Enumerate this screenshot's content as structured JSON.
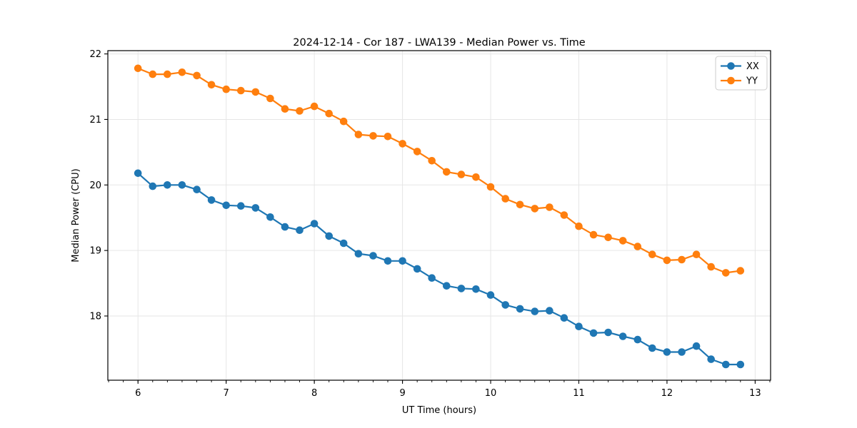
{
  "figure": {
    "background": "#ffffff",
    "spine_color": "#000000",
    "grid_color": "#e6e6e6",
    "tick_label_color": "#000000"
  },
  "chart_data": {
    "type": "line",
    "title": "2024-12-14 - Cor 187 - LWA139 - Median Power vs. Time",
    "xlabel": "UT Time (hours)",
    "ylabel": "Median Power (CPU)",
    "xlim": [
      5.658,
      13.175
    ],
    "ylim": [
      17.02,
      22.05
    ],
    "xticks": [
      6,
      7,
      8,
      9,
      10,
      11,
      12,
      13
    ],
    "yticks": [
      18,
      19,
      20,
      21,
      22
    ],
    "x_minor_step_hours": 0.166667,
    "grid": true,
    "legend_position": "upper right",
    "marker": "circle",
    "x": [
      6.0,
      6.167,
      6.333,
      6.5,
      6.667,
      6.833,
      7.0,
      7.167,
      7.333,
      7.5,
      7.667,
      7.833,
      8.0,
      8.167,
      8.333,
      8.5,
      8.667,
      8.833,
      9.0,
      9.167,
      9.333,
      9.5,
      9.667,
      9.833,
      10.0,
      10.167,
      10.333,
      10.5,
      10.667,
      10.833,
      11.0,
      11.167,
      11.333,
      11.5,
      11.667,
      11.833,
      12.0,
      12.167,
      12.333,
      12.5,
      12.667,
      12.833
    ],
    "series": [
      {
        "name": "XX",
        "color": "#1f77b4",
        "values": [
          20.18,
          19.98,
          20.0,
          20.0,
          19.93,
          19.77,
          19.69,
          19.68,
          19.65,
          19.51,
          19.36,
          19.31,
          19.41,
          19.22,
          19.11,
          18.95,
          18.92,
          18.84,
          18.84,
          18.72,
          18.58,
          18.46,
          18.42,
          18.41,
          18.32,
          18.17,
          18.11,
          18.07,
          18.08,
          17.97,
          17.84,
          17.74,
          17.75,
          17.69,
          17.64,
          17.51,
          17.45,
          17.45,
          17.54,
          17.34,
          17.26,
          17.26
        ]
      },
      {
        "name": "YY",
        "color": "#ff7f0e",
        "values": [
          21.78,
          21.69,
          21.69,
          21.72,
          21.67,
          21.53,
          21.46,
          21.44,
          21.42,
          21.32,
          21.16,
          21.13,
          21.2,
          21.09,
          20.97,
          20.77,
          20.75,
          20.74,
          20.63,
          20.51,
          20.37,
          20.2,
          20.16,
          20.12,
          19.97,
          19.79,
          19.7,
          19.64,
          19.66,
          19.54,
          19.37,
          19.24,
          19.2,
          19.15,
          19.06,
          18.94,
          18.85,
          18.86,
          18.94,
          18.75,
          18.66,
          18.69
        ]
      }
    ]
  }
}
